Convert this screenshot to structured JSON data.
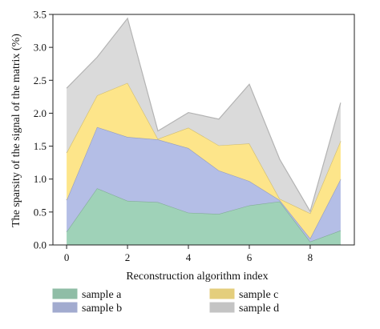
{
  "chart_data": {
    "type": "area",
    "stacked": true,
    "xlabel": "Reconstruction algorithm index",
    "ylabel": "The sparsity of the signal of the matrix (%)",
    "x": [
      0,
      1,
      2,
      3,
      4,
      5,
      6,
      7,
      8,
      9
    ],
    "xticks": [
      0,
      2,
      4,
      6,
      8
    ],
    "xtick_labels": [
      "0",
      "2",
      "4",
      "6",
      "8"
    ],
    "xlim": [
      -0.45,
      9.45
    ],
    "ylim": [
      0,
      3.5
    ],
    "yticks": [
      0,
      0.5,
      1.0,
      1.5,
      2.0,
      2.5,
      3.0,
      3.5
    ],
    "ytick_labels": [
      "0.0",
      "0.5",
      "1.0",
      "1.5",
      "2.0",
      "2.5",
      "3.0",
      "3.5"
    ],
    "grid": false,
    "legend_position": "bottom",
    "series": [
      {
        "name": "sample a",
        "color": "#9fd2b8",
        "values": [
          0.2,
          0.86,
          0.67,
          0.65,
          0.49,
          0.47,
          0.6,
          0.66,
          0.05,
          0.22
        ]
      },
      {
        "name": "sample b",
        "color": "#b4bee6",
        "values": [
          0.48,
          0.93,
          0.97,
          0.95,
          0.98,
          0.66,
          0.37,
          0.02,
          0.05,
          0.78
        ]
      },
      {
        "name": "sample c",
        "color": "#fde58a",
        "values": [
          0.72,
          0.48,
          0.82,
          0.01,
          0.31,
          0.38,
          0.57,
          0.02,
          0.38,
          0.58
        ]
      },
      {
        "name": "sample d",
        "color": "#dadada",
        "values": [
          0.98,
          0.58,
          0.98,
          0.12,
          0.23,
          0.4,
          0.9,
          0.6,
          0.03,
          0.58
        ]
      }
    ]
  }
}
